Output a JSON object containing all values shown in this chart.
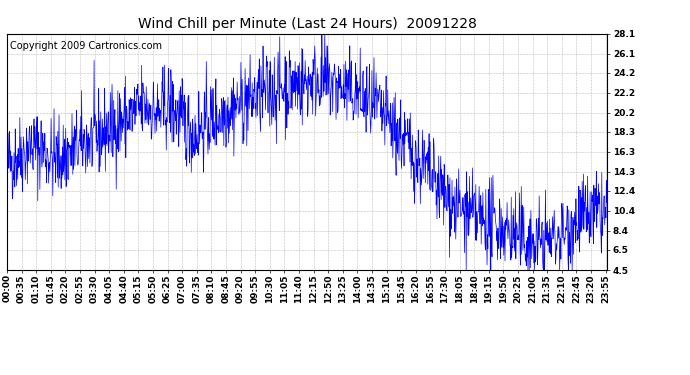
{
  "title": "Wind Chill per Minute (Last 24 Hours)  20091228",
  "copyright_text": "Copyright 2009 Cartronics.com",
  "line_color": "#0000FF",
  "background_color": "#FFFFFF",
  "grid_color": "#BBBBBB",
  "ylim": [
    4.5,
    28.1
  ],
  "yticks": [
    4.5,
    6.5,
    8.4,
    10.4,
    12.4,
    14.3,
    16.3,
    18.3,
    20.2,
    22.2,
    24.2,
    26.1,
    28.1
  ],
  "xtick_labels": [
    "00:00",
    "00:35",
    "01:10",
    "01:45",
    "02:20",
    "02:55",
    "03:30",
    "04:05",
    "04:40",
    "05:15",
    "05:50",
    "06:25",
    "07:00",
    "07:35",
    "08:10",
    "08:45",
    "09:20",
    "09:55",
    "10:30",
    "11:05",
    "11:40",
    "12:15",
    "12:50",
    "13:25",
    "14:00",
    "14:35",
    "15:10",
    "15:45",
    "16:20",
    "16:55",
    "17:30",
    "18:05",
    "18:40",
    "19:15",
    "19:50",
    "20:25",
    "21:00",
    "21:35",
    "22:10",
    "22:45",
    "23:20",
    "23:55"
  ],
  "num_minutes": 1440,
  "tick_interval_minutes": 35,
  "title_fontsize": 10,
  "copyright_fontsize": 7,
  "tick_fontsize": 6.5,
  "line_width": 0.5
}
